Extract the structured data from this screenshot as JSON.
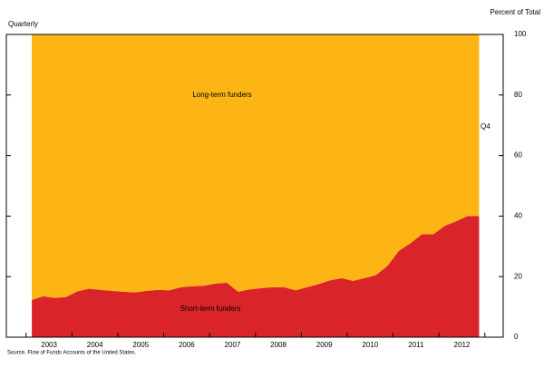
{
  "chart_data": {
    "type": "stacked_area",
    "subtitle": "Quarterly",
    "y_axis_label": "Percent of Total",
    "annotation": "Q4",
    "source": "Source. Flow of Funds Accounts of the United States.",
    "x": [
      2003.125,
      2003.375,
      2003.625,
      2003.875,
      2004.125,
      2004.375,
      2004.625,
      2004.875,
      2005.125,
      2005.375,
      2005.625,
      2005.875,
      2006.125,
      2006.375,
      2006.625,
      2006.875,
      2007.125,
      2007.375,
      2007.625,
      2007.875,
      2008.125,
      2008.375,
      2008.625,
      2008.875,
      2009.125,
      2009.375,
      2009.625,
      2009.875,
      2010.125,
      2010.375,
      2010.625,
      2010.875,
      2011.125,
      2011.375,
      2011.625,
      2011.875,
      2012.125,
      2012.375,
      2012.625,
      2012.875
    ],
    "series": [
      {
        "name": "Short-term funders",
        "color": "#d9252a",
        "values": [
          12.3,
          13.5,
          13,
          13.3,
          15.2,
          16,
          15.6,
          15.3,
          15,
          14.8,
          15.3,
          15.6,
          15.5,
          16.5,
          16.8,
          17,
          17.7,
          18,
          15,
          15.8,
          16.2,
          16.5,
          16.5,
          15.5,
          16.5,
          17.5,
          18.8,
          19.5,
          18.6,
          19.5,
          20.5,
          23.5,
          28.5,
          31,
          34,
          34,
          36.8,
          38.3,
          40,
          40
        ]
      },
      {
        "name": "Long-term funders",
        "color": "#fdb515",
        "values": [
          87.7,
          86.5,
          87,
          86.7,
          84.8,
          84,
          84.4,
          84.7,
          85,
          85.2,
          84.7,
          84.4,
          84.5,
          83.5,
          83.2,
          83,
          82.3,
          82,
          85,
          84.2,
          83.8,
          83.5,
          83.5,
          84.5,
          83.5,
          82.5,
          81.2,
          80.5,
          81.4,
          80.5,
          79.5,
          76.5,
          71.5,
          69,
          66,
          66,
          63.2,
          61.7,
          60,
          60
        ]
      }
    ],
    "xlim": [
      2002.57,
      2013.4
    ],
    "xticks": [
      2003,
      2004,
      2005,
      2006,
      2007,
      2008,
      2009,
      2010,
      2011,
      2012
    ],
    "ylim": [
      0,
      100
    ],
    "yticks": [
      0,
      20,
      40,
      60,
      80,
      100
    ]
  }
}
